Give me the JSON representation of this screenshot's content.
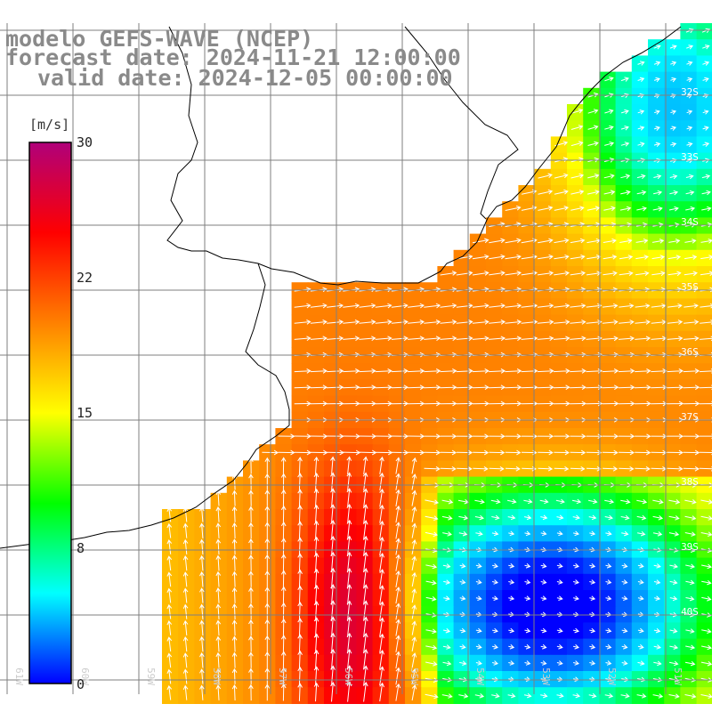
{
  "title": {
    "model": "modelo GEFS-WAVE (NCEP)",
    "forecast": "forecast date: 2024-11-21 12:00:00",
    "valid": "valid date: 2024-12-05 00:00:00"
  },
  "colorbar": {
    "units": "[m/s]",
    "ticks": [
      "30",
      "22",
      "15",
      "8",
      "0"
    ],
    "colors": [
      "#0000ff",
      "#00ffff",
      "#00ff00",
      "#ffff00",
      "#ff8000",
      "#ff0000",
      "#b0007a"
    ]
  },
  "lat_labels": [
    "32S",
    "33S",
    "34S",
    "35S",
    "36S",
    "37S",
    "38S",
    "39S",
    "40S"
  ],
  "lon_labels": [
    "61W",
    "60W",
    "59W",
    "58W",
    "57W",
    "56W",
    "55W",
    "54W",
    "53W",
    "52W",
    "51W"
  ],
  "overlay_colors": {
    "coastline": "#000000",
    "grid": "#7f7f7f",
    "vectors": "#ffffff"
  }
}
